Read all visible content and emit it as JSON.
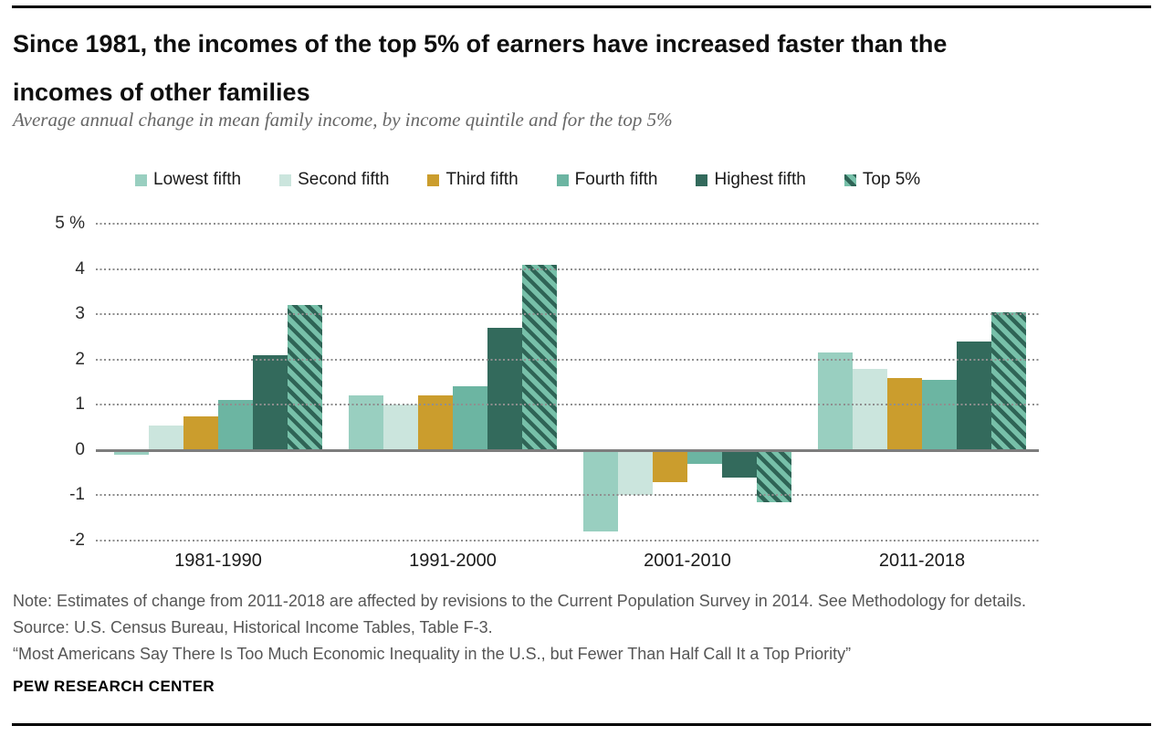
{
  "header": {
    "title_lines": [
      "Since 1981, the incomes of the top 5% of earners have increased faster than the",
      "incomes of other families"
    ],
    "subtitle": "Average annual change in mean family income, by income quintile and for the top 5%"
  },
  "chart_data": {
    "type": "bar",
    "title": "Since 1981, the incomes of the top 5% of earners have increased faster than the incomes of other families",
    "subtitle": "Average annual change in mean family income, by income quintile and for the top 5%",
    "categories": [
      "1981-1990",
      "1991-2000",
      "2001-2010",
      "2011-2018"
    ],
    "series": [
      {
        "name": "Lowest fifth",
        "color": "#99cfc0",
        "values": [
          -0.1,
          1.2,
          -1.8,
          2.15
        ]
      },
      {
        "name": "Second fifth",
        "color": "#cbe5dd",
        "values": [
          0.55,
          1.0,
          -1.0,
          1.8
        ]
      },
      {
        "name": "Third fifth",
        "color": "#cb9d2d",
        "values": [
          0.75,
          1.2,
          -0.7,
          1.6
        ]
      },
      {
        "name": "Fourth fifth",
        "color": "#6cb5a2",
        "values": [
          1.1,
          1.4,
          -0.3,
          1.55
        ]
      },
      {
        "name": "Highest fifth",
        "color": "#336a5c",
        "values": [
          2.1,
          2.7,
          -0.6,
          2.4
        ]
      },
      {
        "name": "Top 5%",
        "color": "#77c0a9",
        "hatch": true,
        "hatch_color": "#2f6456",
        "values": [
          3.2,
          4.1,
          -1.15,
          3.05
        ]
      }
    ],
    "xlabel": "",
    "ylabel": "",
    "ylim": [
      -2,
      5
    ],
    "yticks": [
      {
        "value": 5,
        "label": "5 %"
      },
      {
        "value": 4,
        "label": "4"
      },
      {
        "value": 3,
        "label": "3"
      },
      {
        "value": 2,
        "label": "2"
      },
      {
        "value": 1,
        "label": "1"
      },
      {
        "value": 0,
        "label": "0"
      },
      {
        "value": -1,
        "label": "-1"
      },
      {
        "value": -2,
        "label": "-2"
      }
    ],
    "grid": "dotted-horizontal",
    "legend_position": "top"
  },
  "footer": {
    "note": "Note: Estimates of change from 2011-2018 are affected by revisions to the Current Population Survey in 2014. See Methodology for details.",
    "source": "Source: U.S. Census Bureau, Historical Income Tables, Table F-3.",
    "report_title": "“Most Americans Say There Is Too Much Economic Inequality in the U.S., but Fewer Than Half Call It a Top Priority”",
    "brand": "PEW RESEARCH CENTER"
  }
}
